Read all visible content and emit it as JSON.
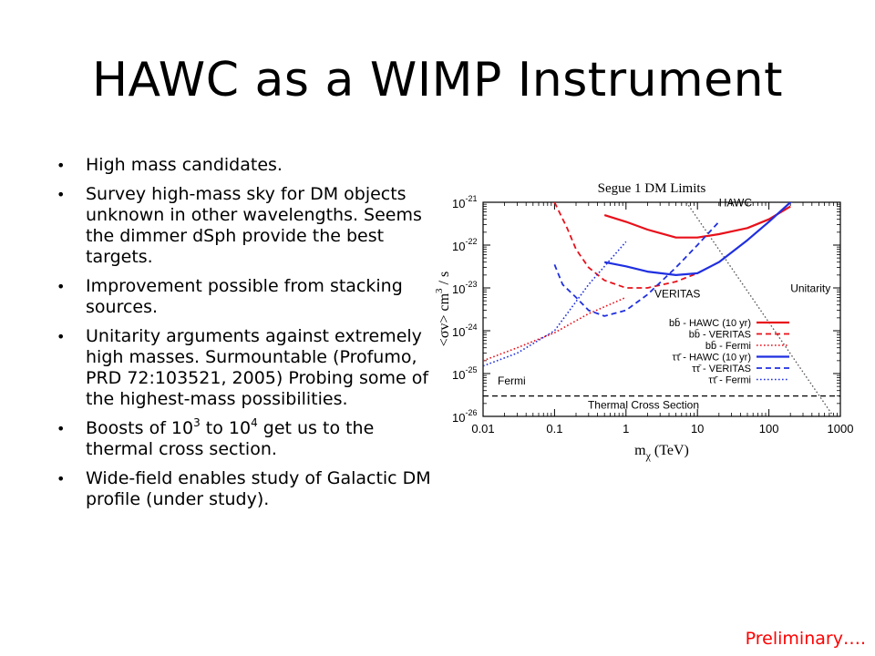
{
  "slide": {
    "title": "HAWC as a WIMP Instrument",
    "footer": "Preliminary….",
    "bullets": [
      {
        "parts": [
          {
            "t": "High mass candidates."
          }
        ]
      },
      {
        "parts": [
          {
            "t": "Survey high-mass sky for DM objects unknown in other wavelengths. Seems the dimmer dSph provide the best targets."
          }
        ]
      },
      {
        "parts": [
          {
            "t": "Improvement possible from stacking sources."
          }
        ]
      },
      {
        "parts": [
          {
            "t": "Unitarity arguments against extremely high masses. Surmountable (Profumo, PRD 72:103521, 2005)  Probing some of the highest-mass possibilities."
          }
        ]
      },
      {
        "parts": [
          {
            "t": "Boosts of 10"
          },
          {
            "sup": "3"
          },
          {
            "t": " to 10"
          },
          {
            "sup": "4"
          },
          {
            "t": " get us to the thermal cross section."
          }
        ]
      },
      {
        "parts": [
          {
            "t": "Wide-field enables study of Galactic DM profile (under study)."
          }
        ]
      }
    ]
  },
  "chart_data": {
    "type": "line",
    "title": "Segue 1 DM Limits",
    "xlabel": "mχ (TeV)",
    "ylabel": "<σv> cm³ / s",
    "xscale": "log",
    "yscale": "log",
    "xlim": [
      0.01,
      1000
    ],
    "ylim": [
      1e-26,
      1e-21
    ],
    "xticks": [
      {
        "v": 0.01,
        "label": "0.01"
      },
      {
        "v": 0.1,
        "label": "0.1"
      },
      {
        "v": 1,
        "label": "1"
      },
      {
        "v": 10,
        "label": "10"
      },
      {
        "v": 100,
        "label": "100"
      },
      {
        "v": 1000,
        "label": "1000"
      }
    ],
    "yticks": [
      {
        "v": 1e-21,
        "base": "10",
        "exp": "-21"
      },
      {
        "v": 1e-22,
        "base": "10",
        "exp": "-22"
      },
      {
        "v": 1e-23,
        "base": "10",
        "exp": "-23"
      },
      {
        "v": 1e-24,
        "base": "10",
        "exp": "-24"
      },
      {
        "v": 1e-25,
        "base": "10",
        "exp": "-25"
      },
      {
        "v": 1e-26,
        "base": "10",
        "exp": "-26"
      }
    ],
    "legend_position": "lower-right",
    "colors": {
      "red": "#e8101a",
      "blue": "#1f2fe0",
      "grey": "#555555"
    },
    "series": [
      {
        "name": "bb̄ - HAWC (10 yr)",
        "color": "#e8101a",
        "style": "solid",
        "width": 2.2,
        "x": [
          0.5,
          1,
          2,
          5,
          10,
          20,
          50,
          100,
          200
        ],
        "y": [
          5e-22,
          3.5e-22,
          2.3e-22,
          1.5e-22,
          1.5e-22,
          1.8e-22,
          2.5e-22,
          4e-22,
          8e-22
        ]
      },
      {
        "name": "bb̄ - VERITAS",
        "color": "#e8101a",
        "style": "dashed",
        "width": 1.8,
        "x": [
          0.1,
          0.15,
          0.2,
          0.3,
          0.5,
          1,
          2,
          5,
          10,
          20
        ],
        "y": [
          1e-21,
          2.5e-22,
          8e-23,
          3e-23,
          1.5e-23,
          1e-23,
          1e-23,
          1.4e-23,
          2.2e-23,
          4e-23
        ]
      },
      {
        "name": "bb̄ - Fermi",
        "color": "#e8101a",
        "style": "dotted",
        "width": 1.6,
        "x": [
          0.01,
          0.03,
          0.1,
          0.3,
          1
        ],
        "y": [
          2e-25,
          4e-25,
          9e-25,
          2.5e-24,
          6e-24
        ]
      },
      {
        "name": "ττ̄ - HAWC (10 yr)",
        "color": "#1f2fe0",
        "style": "solid",
        "width": 2.2,
        "x": [
          0.5,
          1,
          2,
          5,
          10,
          20,
          50,
          100,
          200,
          300
        ],
        "y": [
          4e-23,
          3.2e-23,
          2.4e-23,
          2e-23,
          2.2e-23,
          4e-23,
          1.3e-22,
          3.5e-22,
          1e-21,
          1.5e-21
        ]
      },
      {
        "name": "ττ̄ - VERITAS",
        "color": "#1f2fe0",
        "style": "dashed",
        "width": 1.8,
        "x": [
          0.1,
          0.13,
          0.2,
          0.3,
          0.5,
          1,
          2,
          5,
          10,
          20
        ],
        "y": [
          3.5e-23,
          1.2e-23,
          6e-24,
          3e-24,
          2.2e-24,
          3e-24,
          7e-24,
          3e-23,
          1e-22,
          3.5e-22
        ]
      },
      {
        "name": "ττ̄ - Fermi",
        "color": "#1f2fe0",
        "style": "dotted",
        "width": 1.6,
        "x": [
          0.01,
          0.03,
          0.1,
          0.3,
          1
        ],
        "y": [
          1.5e-25,
          3e-25,
          1e-24,
          1.2e-23,
          1.2e-22
        ]
      }
    ],
    "reference_lines": [
      {
        "name": "Unitarity",
        "color": "#555555",
        "style": "dotted",
        "x": [
          7,
          800
        ],
        "y": [
          1e-21,
          1e-26
        ]
      },
      {
        "name": "Thermal Cross Section",
        "color": "#000000",
        "style": "dashed",
        "x": [
          0.01,
          1000
        ],
        "y": [
          3e-26,
          3e-26
        ]
      }
    ],
    "annotations": [
      {
        "text": "HAWC",
        "x": 20,
        "y": 8e-22
      },
      {
        "text": "VERITAS",
        "x": 2.5,
        "y": 6e-24
      },
      {
        "text": "Unitarity",
        "x": 200,
        "y": 8e-24
      },
      {
        "text": "Fermi",
        "x": 0.016,
        "y": 5.5e-26
      }
    ]
  }
}
